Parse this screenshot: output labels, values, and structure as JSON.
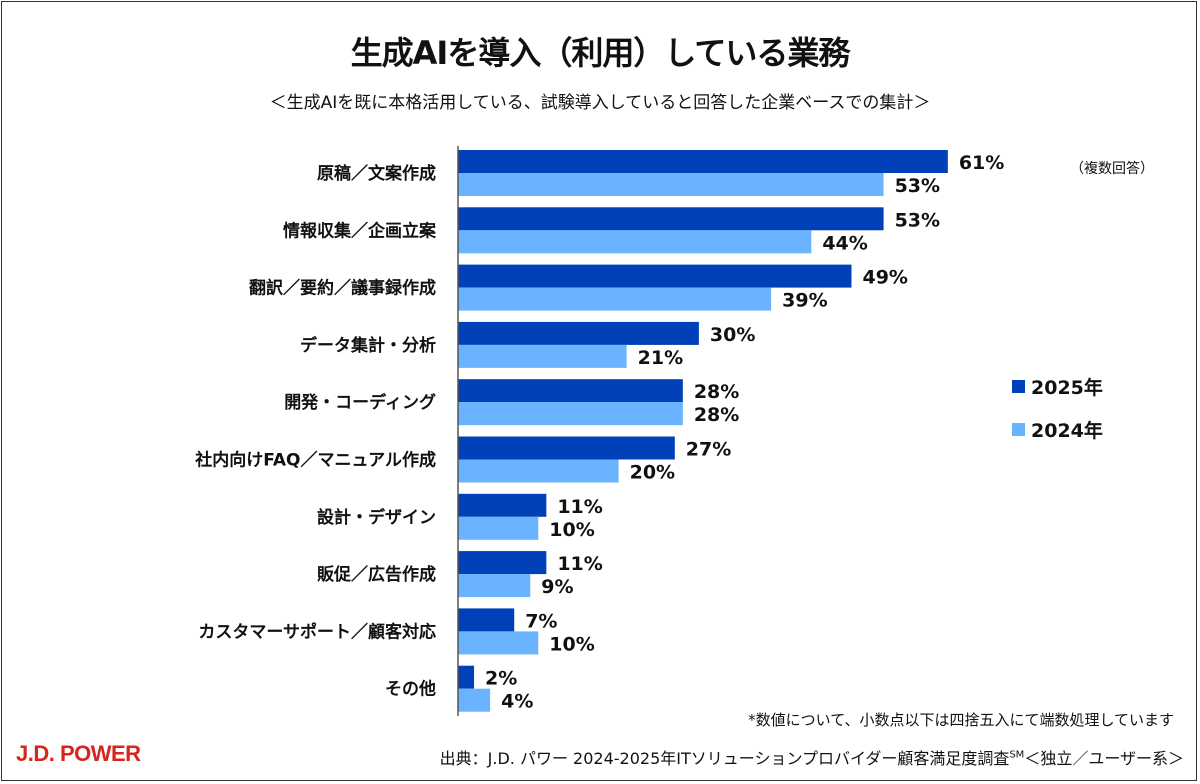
{
  "chart_data": {
    "type": "bar",
    "orientation": "horizontal",
    "title": "生成AIを導入（利用）している業務",
    "subtitle": "＜生成AIを既に本格活用している、試験導入していると回答した企業ベースでの集計＞",
    "categories": [
      "原稿／文案作成",
      "情報収集／企画立案",
      "翻訳／要約／議事録作成",
      "データ集計・分析",
      "開発・コーディング",
      "社内向けFAQ／マニュアル作成",
      "設計・デザイン",
      "販促／広告作成",
      "カスタマーサポート／顧客対応",
      "その他"
    ],
    "series": [
      {
        "name": "2025年",
        "color": "#0040b8",
        "values": [
          61,
          53,
          49,
          30,
          28,
          27,
          11,
          11,
          7,
          2
        ]
      },
      {
        "name": "2024年",
        "color": "#6ab4ff",
        "values": [
          53,
          44,
          39,
          21,
          28,
          20,
          10,
          9,
          10,
          4
        ]
      }
    ],
    "value_suffix": "%",
    "xlim": [
      0,
      70
    ],
    "grid": false,
    "legend_position": "right",
    "annotation": "（複数回答）"
  },
  "footnote": "*数値について、小数点以下は四捨五入にて端数処理しています",
  "logo": "J.D. POWER",
  "source": {
    "text": "出典：J.D. パワー 2024-2025年ITソリューションプロバイダー顧客満足度調査",
    "sup": "SM",
    "suffix": "＜独立／ユーザー系＞"
  }
}
